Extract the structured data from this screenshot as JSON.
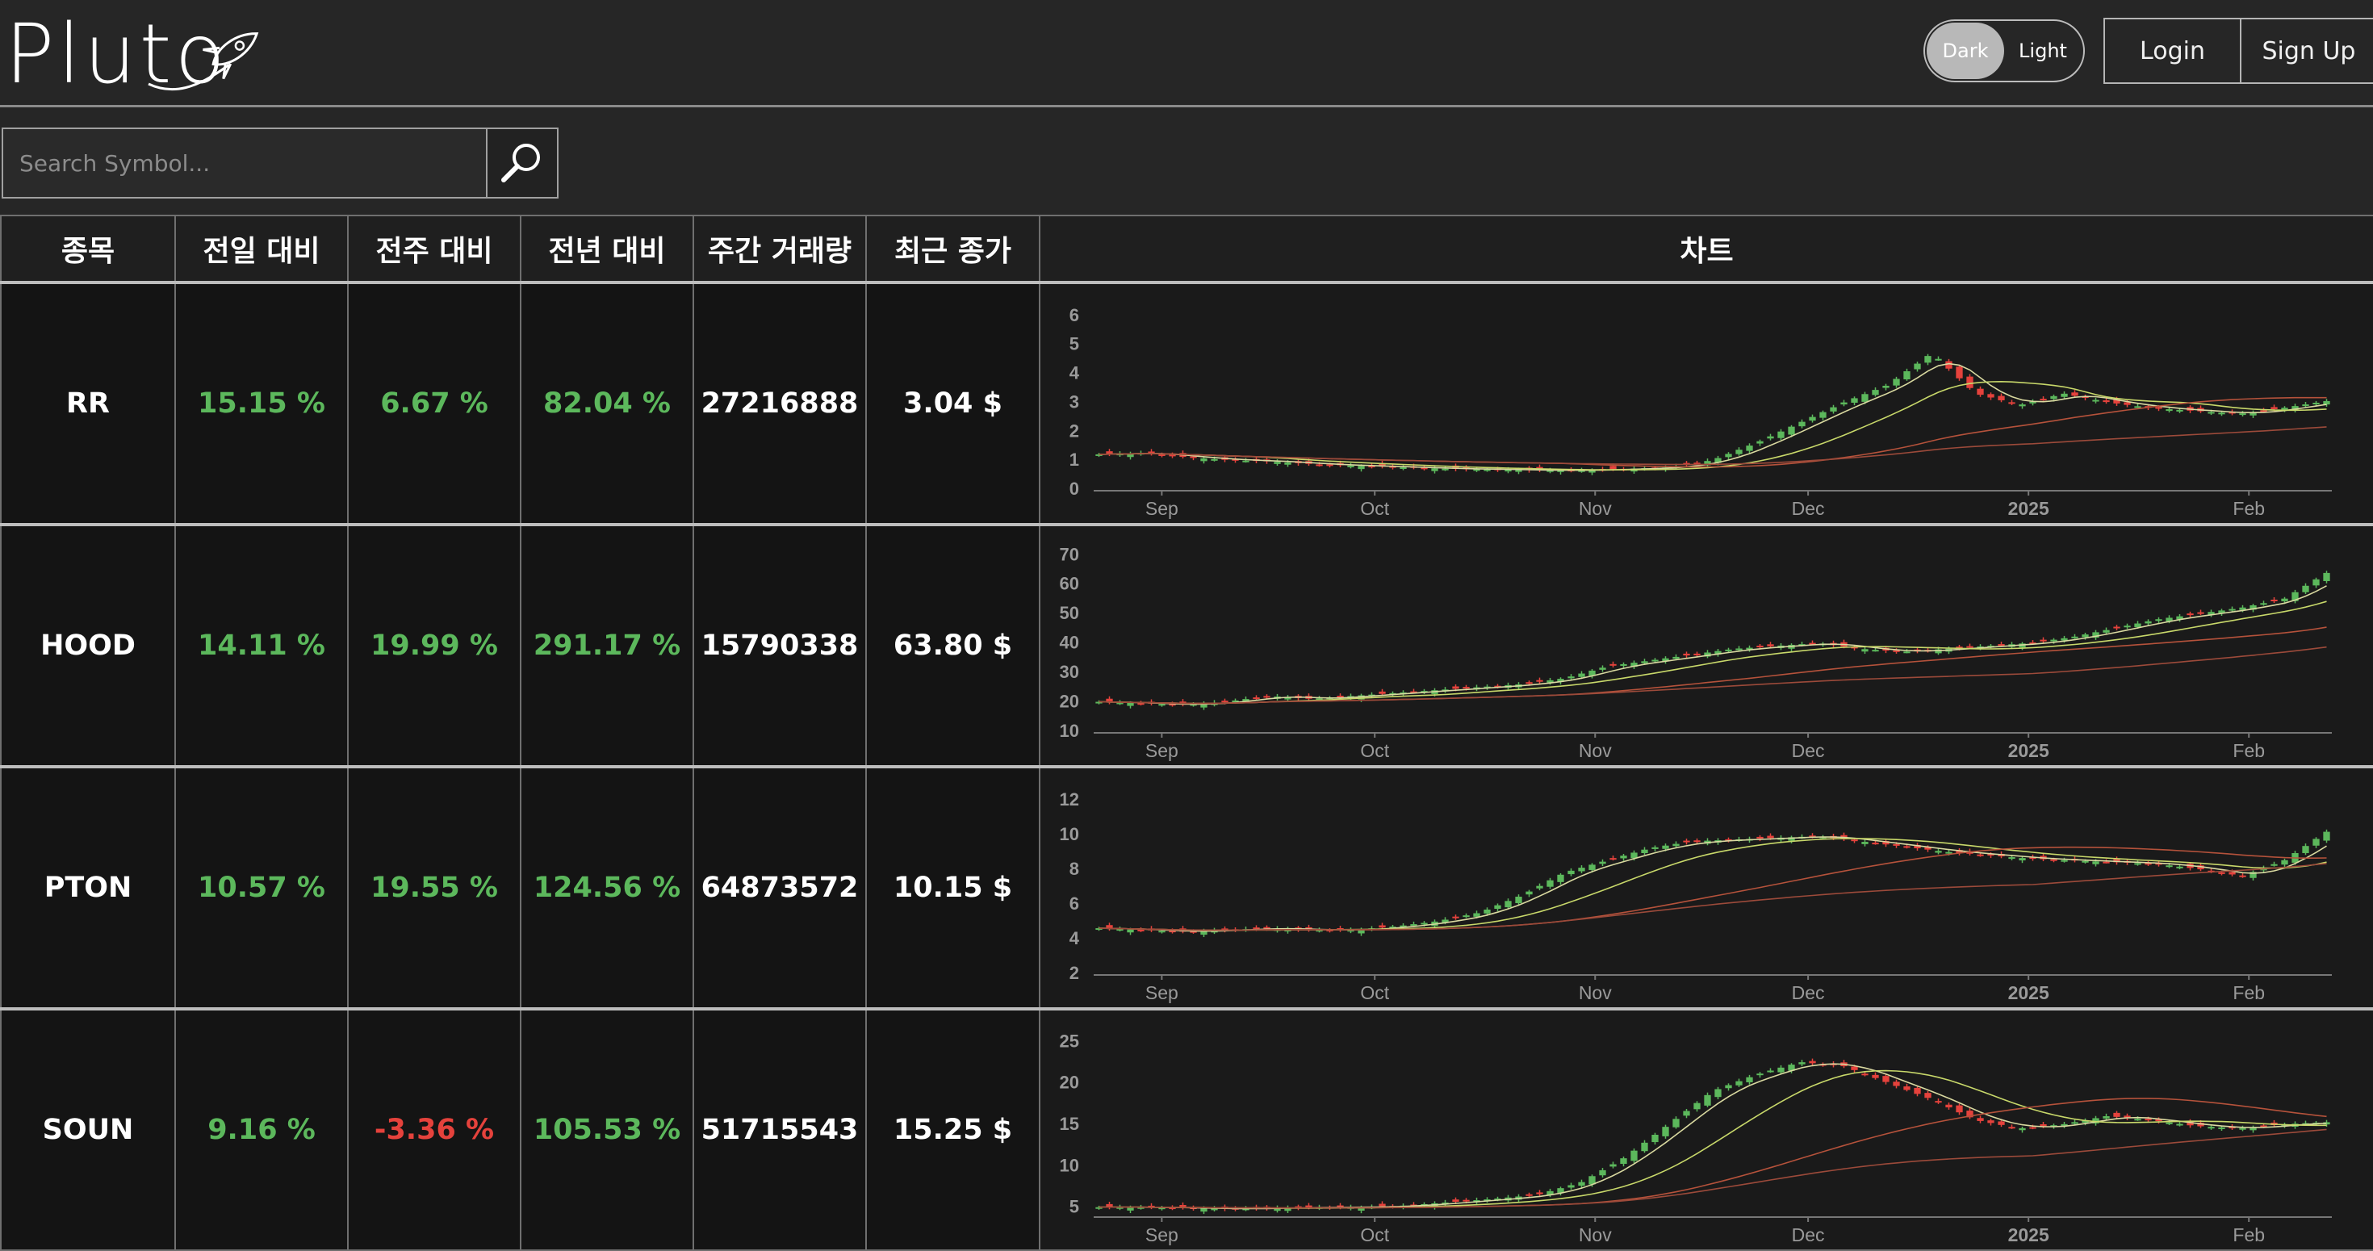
{
  "header": {
    "logo_text": "Pluto",
    "theme": {
      "dark_label": "Dark",
      "light_label": "Light",
      "active": "Dark"
    },
    "login_label": "Login",
    "signup_label": "Sign Up"
  },
  "search": {
    "placeholder": "Search Symbol..."
  },
  "table": {
    "headers": {
      "symbol": "종목",
      "day": "전일 대비",
      "week": "전주 대비",
      "year": "전년 대비",
      "volume": "주간 거래량",
      "close": "최근 종가",
      "chart": "차트"
    },
    "rows": [
      {
        "symbol": "RR",
        "day": "15.15 %",
        "week": "6.67 %",
        "year": "82.04 %",
        "volume": "27216888",
        "close": "3.04 $"
      },
      {
        "symbol": "HOOD",
        "day": "14.11 %",
        "week": "19.99 %",
        "year": "291.17 %",
        "volume": "15790338",
        "close": "63.80 $"
      },
      {
        "symbol": "PTON",
        "day": "10.57 %",
        "week": "19.55 %",
        "year": "124.56 %",
        "volume": "64873572",
        "close": "10.15 $"
      },
      {
        "symbol": "SOUN",
        "day": "9.16 %",
        "week": "-3.36 %",
        "year": "105.53 %",
        "volume": "51715543",
        "close": "15.25 $"
      }
    ]
  },
  "colors": {
    "up": "#5cb85c",
    "down": "#e5423c",
    "ma_short": "#c8d86a",
    "ma_long": "#b5523b"
  },
  "chart_data": [
    {
      "type": "candlestick",
      "symbol": "RR",
      "x_ticks": [
        "Sep",
        "Oct",
        "Nov",
        "Dec",
        "2025",
        "Feb"
      ],
      "y_ticks": [
        0,
        1,
        2,
        3,
        4,
        5,
        6
      ],
      "ylim": [
        0,
        6.3
      ],
      "closes": [
        1.2,
        1.25,
        1.1,
        1.0,
        0.95,
        0.85,
        0.8,
        0.75,
        0.7,
        0.68,
        0.65,
        0.65,
        0.7,
        0.75,
        1.0,
        1.6,
        2.3,
        3.0,
        3.6,
        4.7,
        3.3,
        2.9,
        3.3,
        3.0,
        2.8,
        2.7,
        2.6,
        2.8,
        3.04
      ]
    },
    {
      "type": "candlestick",
      "symbol": "HOOD",
      "x_ticks": [
        "Sep",
        "Oct",
        "Nov",
        "Dec",
        "2025",
        "Feb"
      ],
      "y_ticks": [
        10,
        20,
        30,
        40,
        50,
        60,
        70
      ],
      "ylim": [
        10,
        72
      ],
      "closes": [
        20,
        19.5,
        19,
        20,
        22,
        21,
        22,
        23,
        24,
        25,
        26,
        28,
        32,
        34,
        36,
        38,
        39,
        40,
        38,
        37,
        38,
        39,
        40,
        42,
        45,
        48,
        50,
        52,
        55,
        63.8
      ]
    },
    {
      "type": "candlestick",
      "symbol": "PTON",
      "x_ticks": [
        "Sep",
        "Oct",
        "Nov",
        "Dec",
        "2025",
        "Feb"
      ],
      "y_ticks": [
        2,
        4,
        6,
        8,
        10,
        12
      ],
      "ylim": [
        2,
        12.5
      ],
      "closes": [
        4.6,
        4.5,
        4.4,
        4.5,
        4.6,
        4.5,
        4.5,
        4.7,
        5.0,
        5.5,
        6.5,
        7.8,
        8.5,
        9.2,
        9.6,
        9.7,
        9.8,
        9.9,
        9.6,
        9.3,
        9.0,
        8.8,
        8.6,
        8.5,
        8.4,
        8.3,
        8.0,
        7.6,
        8.5,
        10.15
      ]
    },
    {
      "type": "candlestick",
      "symbol": "SOUN",
      "x_ticks": [
        "Sep",
        "Oct",
        "Nov",
        "Dec",
        "2025",
        "Feb"
      ],
      "y_ticks": [
        5,
        10,
        15,
        20,
        25
      ],
      "ylim": [
        4,
        26
      ],
      "closes": [
        5,
        5,
        4.9,
        4.8,
        4.9,
        5,
        5,
        5.2,
        5.6,
        6,
        6.5,
        8,
        11,
        15,
        19,
        21,
        22.5,
        22,
        20,
        18,
        15.5,
        14.5,
        15,
        16,
        15.5,
        14.8,
        14.5,
        15,
        15.25
      ]
    }
  ]
}
